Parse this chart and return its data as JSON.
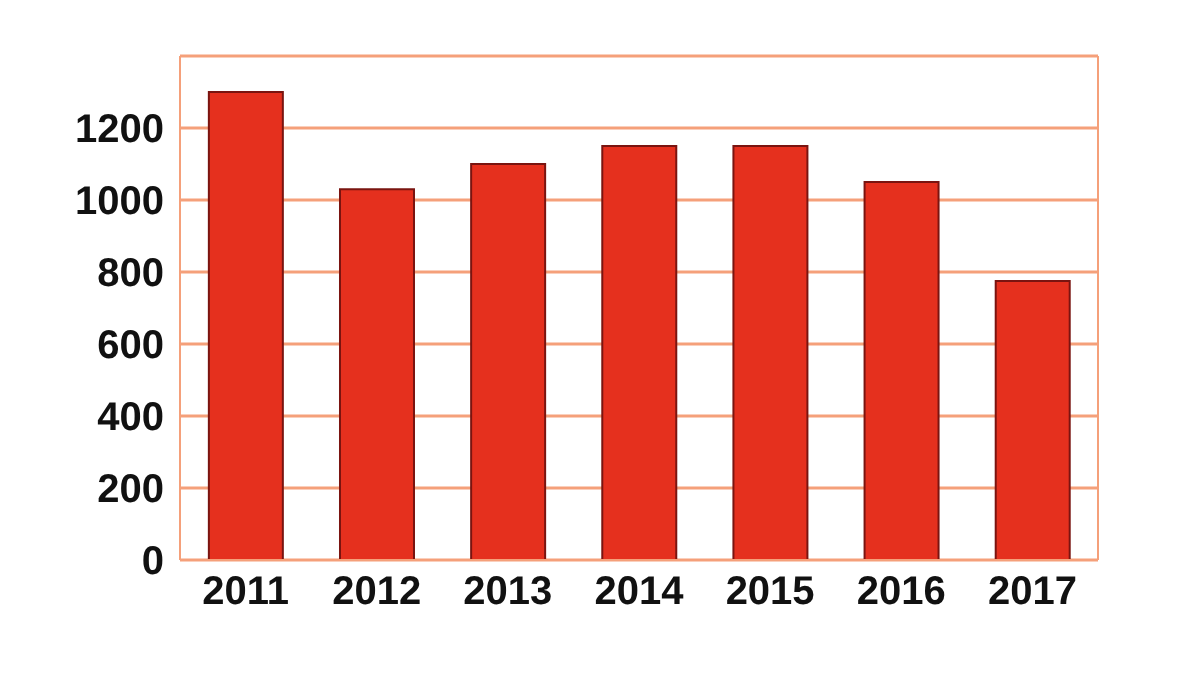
{
  "chart_data": {
    "type": "bar",
    "categories": [
      "2011",
      "2012",
      "2013",
      "2014",
      "2015",
      "2016",
      "2017"
    ],
    "values": [
      1300,
      1030,
      1100,
      1150,
      1150,
      1050,
      775
    ],
    "color": "#e5301e",
    "ylim": [
      0,
      1400
    ],
    "yticks": [
      0,
      200,
      400,
      600,
      800,
      1000,
      1200
    ],
    "grid": "y"
  }
}
